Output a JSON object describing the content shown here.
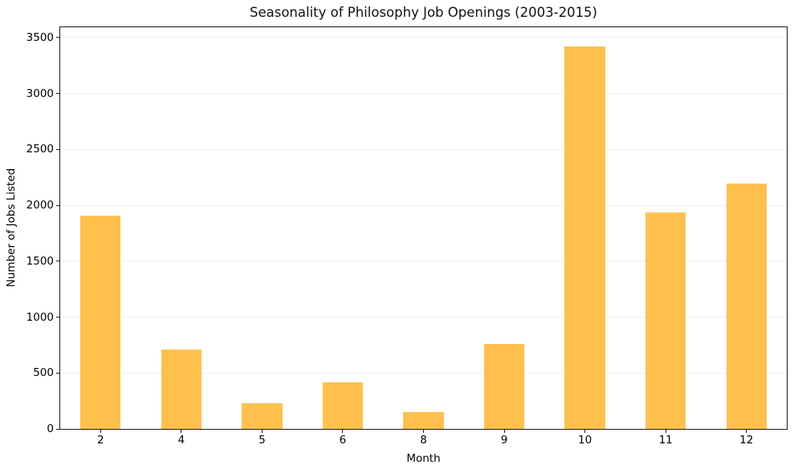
{
  "chart_data": {
    "type": "bar",
    "title": "Seasonality of Philosophy Job Openings (2003-2015)",
    "xlabel": "Month",
    "ylabel": "Number of Jobs Listed",
    "categories": [
      "2",
      "4",
      "5",
      "6",
      "8",
      "9",
      "10",
      "11",
      "12"
    ],
    "values": [
      1910,
      712,
      233,
      418,
      150,
      762,
      3422,
      1938,
      2194
    ],
    "ylim": [
      0,
      3593
    ],
    "yticks": [
      0,
      500,
      1000,
      1500,
      2000,
      2500,
      3000,
      3500
    ],
    "bar_color": "#FFC04D",
    "bar_width_fraction": 0.5,
    "grid": "horizontal-light",
    "legend": "none",
    "spine_color": "#1a1a1a"
  }
}
